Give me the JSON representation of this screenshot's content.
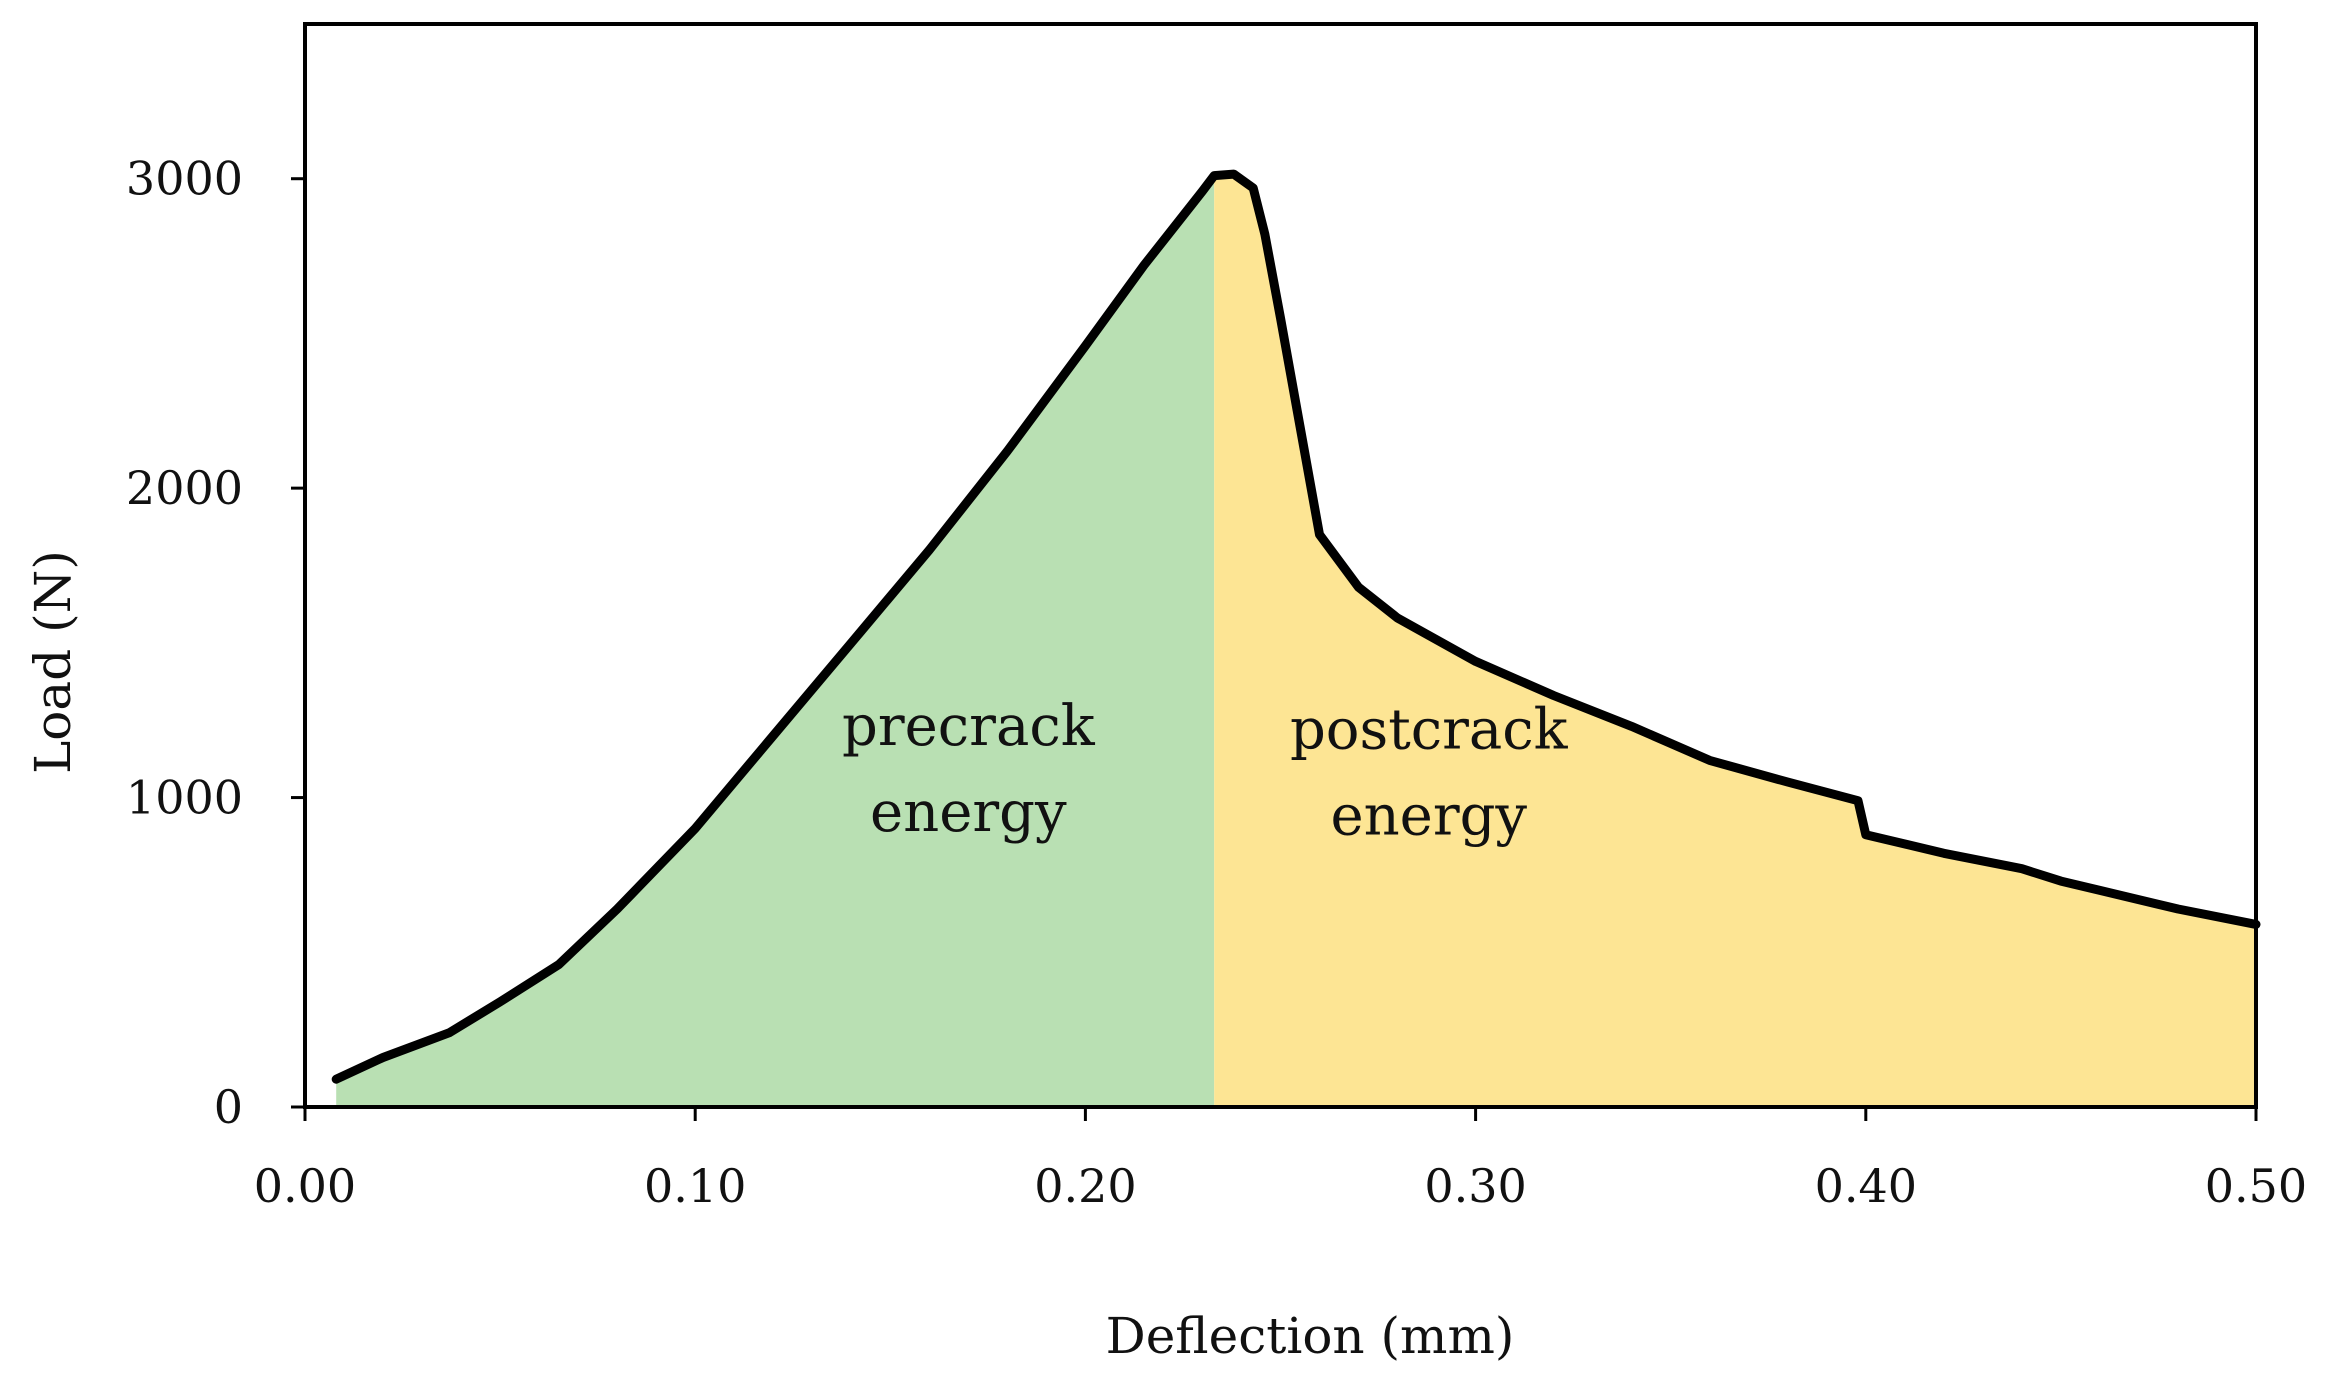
{
  "chart_data": {
    "type": "area",
    "title": "",
    "xlabel": "Deflection (mm)",
    "ylabel": "Load (N)",
    "xlim": [
      0.0,
      0.5
    ],
    "ylim": [
      0,
      3500
    ],
    "xticks": [
      0.0,
      0.1,
      0.2,
      0.3,
      0.4,
      0.5
    ],
    "xtick_labels": [
      "0.00",
      "0.10",
      "0.20",
      "0.30",
      "0.40",
      "0.50"
    ],
    "yticks": [
      0,
      1000,
      2000,
      3000
    ],
    "ytick_labels": [
      "0",
      "1000",
      "2000",
      "3000"
    ],
    "grid": false,
    "peak_deflection": 0.233,
    "series": [
      {
        "name": "load-deflection",
        "color": "#000000",
        "x": [
          0.008,
          0.02,
          0.037,
          0.05,
          0.065,
          0.08,
          0.1,
          0.12,
          0.14,
          0.16,
          0.18,
          0.2,
          0.215,
          0.225,
          0.23,
          0.233,
          0.238,
          0.243,
          0.246,
          0.25,
          0.255,
          0.26,
          0.27,
          0.28,
          0.3,
          0.32,
          0.34,
          0.36,
          0.38,
          0.398,
          0.4,
          0.42,
          0.44,
          0.45,
          0.46,
          0.48,
          0.5
        ],
        "y": [
          90,
          160,
          240,
          340,
          460,
          640,
          900,
          1200,
          1500,
          1800,
          2120,
          2460,
          2720,
          2880,
          2960,
          3010,
          3015,
          2970,
          2820,
          2550,
          2200,
          1850,
          1680,
          1580,
          1440,
          1330,
          1230,
          1120,
          1050,
          990,
          880,
          820,
          770,
          730,
          700,
          640,
          590
        ]
      }
    ],
    "regions": [
      {
        "name": "precrack",
        "color": "#b9e0b3",
        "from": 0.008,
        "to": 0.233
      },
      {
        "name": "postcrack",
        "color": "#fde594",
        "from": 0.233,
        "to": 0.5
      }
    ],
    "annotations": [
      {
        "name": "precrack-label",
        "lines": [
          "precrack",
          "energy"
        ],
        "x": 0.17,
        "y": 1040
      },
      {
        "name": "postcrack-label",
        "lines": [
          "postcrack",
          "energy"
        ],
        "x": 0.288,
        "y": 1030
      }
    ]
  }
}
